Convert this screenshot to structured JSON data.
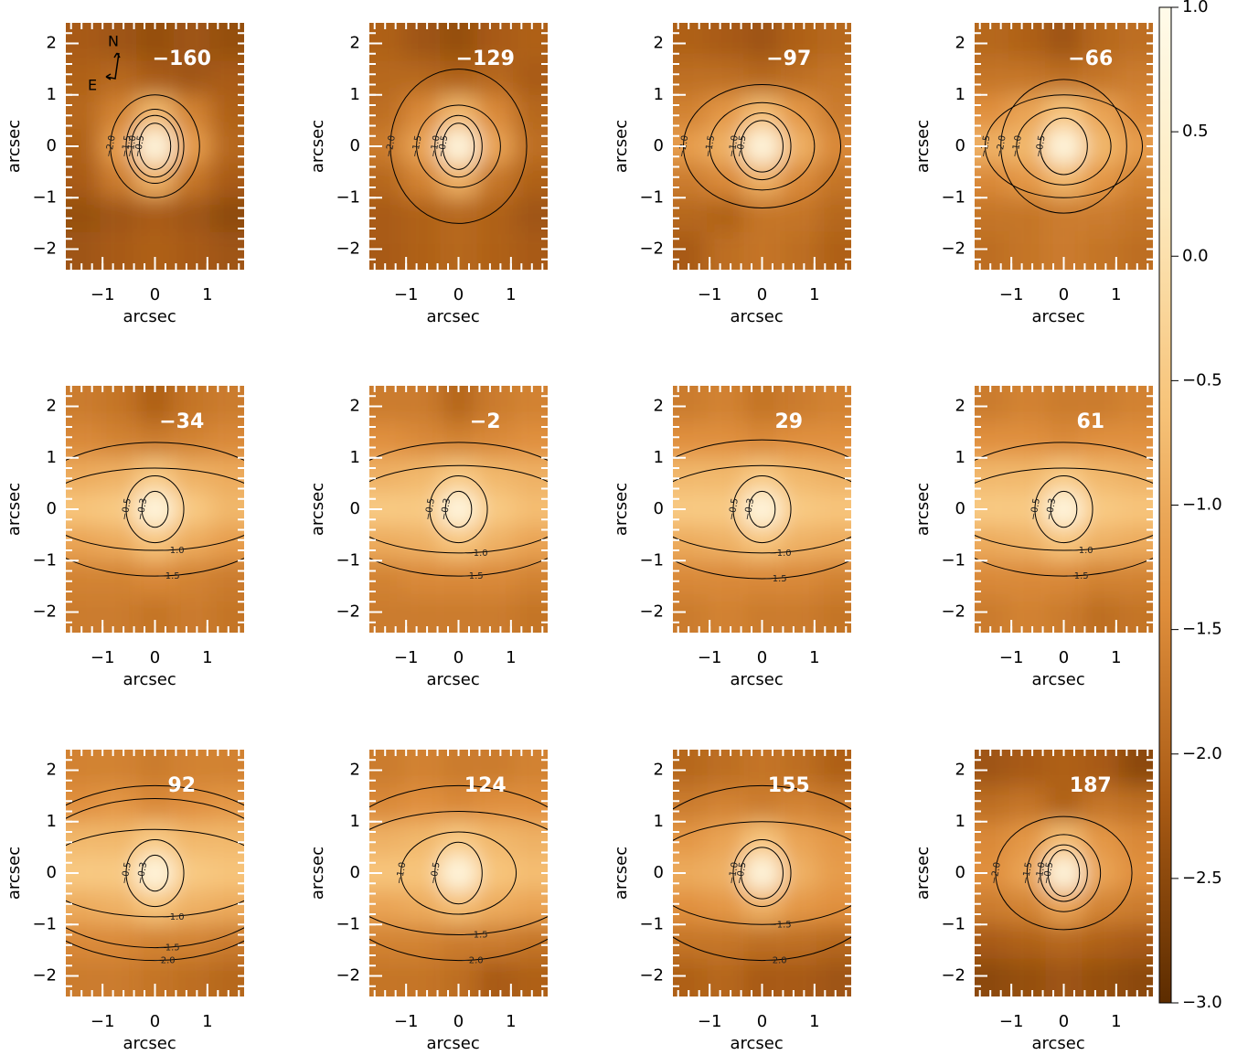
{
  "chart_data": {
    "type": "heatmap",
    "xlabel": "arcsec",
    "ylabel": "arcsec",
    "xlim": [
      -1.7,
      1.7
    ],
    "ylim": [
      -2.4,
      2.4
    ],
    "xticks": [
      {
        "value": -1,
        "label": "−1"
      },
      0,
      1
    ],
    "yticks": [
      {
        "value": -2,
        "label": "−2"
      },
      {
        "value": -1,
        "label": "−1"
      },
      0,
      1,
      2
    ],
    "grid_x": [
      -1.4,
      -0.7,
      0,
      0.7,
      1.4
    ],
    "grid_y": [
      2,
      1.33,
      0.67,
      0,
      -0.67,
      -1.33,
      -2
    ],
    "clim": [
      -3,
      1
    ],
    "colormap": [
      "#5c2c00",
      "#a85a14",
      "#e08f3c",
      "#f7c47a",
      "#fde9bd",
      "#fffbea"
    ],
    "cticks": [
      {
        "value": 1,
        "label": "1.0"
      },
      {
        "value": 0.5,
        "label": "0.5"
      },
      {
        "value": 0,
        "label": "0.0"
      },
      {
        "value": -0.5,
        "label": "−0.5"
      },
      {
        "value": -1,
        "label": "−1.0"
      },
      {
        "value": -1.5,
        "label": "−1.5"
      },
      {
        "value": -2,
        "label": "−2.0"
      },
      {
        "value": -2.5,
        "label": "−2.5"
      },
      {
        "value": -3,
        "label": "−3.0"
      }
    ],
    "compass": {
      "north": "N",
      "east": "E"
    },
    "panels": [
      {
        "title": "−160",
        "values": [
          [
            -2.2,
            -2.3,
            -2.4,
            -2.3,
            -2.4
          ],
          [
            -2.1,
            -2.0,
            -2.2,
            -2.3,
            -2.2
          ],
          [
            -2.0,
            -1.6,
            -0.8,
            -1.6,
            -2.1
          ],
          [
            -2.1,
            -1.2,
            0.8,
            -1.2,
            -2.0
          ],
          [
            -2.2,
            -1.7,
            -0.9,
            -1.8,
            -2.2
          ],
          [
            -2.4,
            -2.3,
            -2.2,
            -2.3,
            -2.5
          ],
          [
            -2.3,
            -2.2,
            -2.1,
            -2.2,
            -2.3
          ]
        ],
        "contours": [
          {
            "level": -0.5,
            "label": "−0.5",
            "rx": 0.3,
            "ry": 0.45
          },
          {
            "level": -1.0,
            "label": "−1.0",
            "rx": 0.45,
            "ry": 0.6
          },
          {
            "level": -1.5,
            "label": "−1.5",
            "rx": 0.55,
            "ry": 0.72
          },
          {
            "level": -2.0,
            "label": "−2.0",
            "rx": 0.85,
            "ry": 1.0
          }
        ]
      },
      {
        "title": "−129",
        "values": [
          [
            -2.1,
            -2.3,
            -2.4,
            -2.2,
            -2.1
          ],
          [
            -2.0,
            -2.0,
            -2.1,
            -2.0,
            -2.2
          ],
          [
            -1.9,
            -1.5,
            -0.8,
            -1.5,
            -2.0
          ],
          [
            -1.7,
            -1.1,
            0.8,
            -1.1,
            -1.9
          ],
          [
            -2.0,
            -1.6,
            -0.9,
            -1.8,
            -2.1
          ],
          [
            -2.2,
            -2.1,
            -2.0,
            -2.1,
            -2.3
          ],
          [
            -2.2,
            -2.1,
            -2.0,
            -2.1,
            -2.2
          ]
        ],
        "contours": [
          {
            "level": -0.5,
            "label": "−0.5",
            "rx": 0.3,
            "ry": 0.45
          },
          {
            "level": -1.0,
            "label": "−1.0",
            "rx": 0.45,
            "ry": 0.6
          },
          {
            "level": -1.5,
            "label": "−1.5",
            "rx": 0.8,
            "ry": 0.8
          },
          {
            "level": -2.0,
            "label": "−2.0",
            "rx": 1.3,
            "ry": 1.5
          }
        ]
      },
      {
        "title": "−97",
        "values": [
          [
            -2.1,
            -2.2,
            -2.3,
            -2.1,
            -2.0
          ],
          [
            -1.9,
            -1.9,
            -2.0,
            -1.9,
            -1.8
          ],
          [
            -1.6,
            -1.3,
            -0.7,
            -1.3,
            -1.7
          ],
          [
            -1.2,
            -0.9,
            0.8,
            -0.9,
            -1.5
          ],
          [
            -1.7,
            -1.5,
            -0.9,
            -1.5,
            -1.8
          ],
          [
            -2.0,
            -2.1,
            -1.8,
            -1.8,
            -2.0
          ],
          [
            -2.2,
            -1.9,
            -1.8,
            -1.9,
            -2.1
          ]
        ],
        "contours": [
          {
            "level": -0.5,
            "label": "−0.5",
            "rx": 0.4,
            "ry": 0.5
          },
          {
            "level": -1.0,
            "label": "−1.0",
            "rx": 0.55,
            "ry": 0.65
          },
          {
            "level": -1.5,
            "label": "−1.5",
            "rx": 1.0,
            "ry": 0.85
          },
          {
            "level": -2.0,
            "label": "−2.0",
            "rx": 1.5,
            "ry": 1.2
          }
        ]
      },
      {
        "title": "−66",
        "values": [
          [
            -2.0,
            -2.1,
            -2.3,
            -2.0,
            -1.9
          ],
          [
            -1.8,
            -1.8,
            -1.9,
            -1.8,
            -1.7
          ],
          [
            -1.4,
            -1.1,
            -0.6,
            -1.1,
            -1.5
          ],
          [
            -0.9,
            -0.8,
            0.8,
            -0.8,
            -1.2
          ],
          [
            -1.5,
            -1.3,
            -0.8,
            -1.3,
            -1.6
          ],
          [
            -1.8,
            -1.8,
            -1.7,
            -1.7,
            -1.8
          ],
          [
            -1.9,
            -1.8,
            -1.7,
            -1.8,
            -1.9
          ]
        ],
        "contours": [
          {
            "level": -0.5,
            "label": "−0.5",
            "rx": 0.45,
            "ry": 0.55
          },
          {
            "level": -1.0,
            "label": "−1.0",
            "rx": 0.9,
            "ry": 0.75
          },
          {
            "level": -1.5,
            "label": "−1.5",
            "rx": 1.5,
            "ry": 1.0
          },
          {
            "level": -2.0,
            "label": "−2.0",
            "rx": 1.2,
            "ry": 1.3
          }
        ]
      },
      {
        "title": "−34",
        "values": [
          [
            -1.7,
            -1.8,
            -2.1,
            -1.8,
            -1.7
          ],
          [
            -1.5,
            -1.6,
            -1.7,
            -1.6,
            -1.5
          ],
          [
            -1.0,
            -0.9,
            -0.5,
            -0.9,
            -1.0
          ],
          [
            -0.6,
            -0.5,
            0.8,
            -0.5,
            -0.8
          ],
          [
            -1.1,
            -1.0,
            -0.6,
            -1.0,
            -1.2
          ],
          [
            -1.6,
            -1.6,
            -1.5,
            -1.6,
            -1.7
          ],
          [
            -1.7,
            -1.7,
            -1.8,
            -1.7,
            -1.8
          ]
        ],
        "contours": [
          {
            "level": -0.3,
            "label": "−0.3",
            "rx": 0.25,
            "ry": 0.35
          },
          {
            "level": -0.5,
            "label": "−0.5",
            "rx": 0.55,
            "ry": 0.65
          },
          {
            "level": -1.0,
            "label": "−1.0",
            "rx": 2.2,
            "ry": 0.8
          },
          {
            "level": -1.5,
            "label": "−1.5",
            "rx": 2.5,
            "ry": 1.3
          }
        ]
      },
      {
        "title": "−2",
        "values": [
          [
            -1.7,
            -1.7,
            -2.0,
            -1.7,
            -1.6
          ],
          [
            -1.4,
            -1.5,
            -1.6,
            -1.5,
            -1.4
          ],
          [
            -0.9,
            -0.8,
            -0.5,
            -0.8,
            -0.9
          ],
          [
            -0.5,
            -0.5,
            0.8,
            -0.5,
            -0.7
          ],
          [
            -1.0,
            -0.9,
            -0.6,
            -0.9,
            -1.1
          ],
          [
            -1.6,
            -1.5,
            -1.5,
            -1.5,
            -1.6
          ],
          [
            -1.7,
            -1.7,
            -1.7,
            -1.7,
            -1.8
          ]
        ],
        "contours": [
          {
            "level": -0.3,
            "label": "−0.3",
            "rx": 0.25,
            "ry": 0.35
          },
          {
            "level": -0.5,
            "label": "−0.5",
            "rx": 0.55,
            "ry": 0.65
          },
          {
            "level": -1.0,
            "label": "−1.0",
            "rx": 2.2,
            "ry": 0.85
          },
          {
            "level": -1.5,
            "label": "−1.5",
            "rx": 2.5,
            "ry": 1.3
          }
        ]
      },
      {
        "title": "29",
        "values": [
          [
            -1.7,
            -1.6,
            -1.8,
            -1.7,
            -1.6
          ],
          [
            -1.4,
            -1.4,
            -1.5,
            -1.4,
            -1.4
          ],
          [
            -0.8,
            -0.8,
            -0.5,
            -0.8,
            -0.9
          ],
          [
            -0.5,
            -0.5,
            0.8,
            -0.5,
            -0.6
          ],
          [
            -1.0,
            -0.9,
            -0.6,
            -0.9,
            -1.0
          ],
          [
            -1.5,
            -1.5,
            -1.5,
            -1.5,
            -1.6
          ],
          [
            -1.7,
            -1.6,
            -1.7,
            -1.7,
            -1.8
          ]
        ],
        "contours": [
          {
            "level": -0.3,
            "label": "−0.3",
            "rx": 0.25,
            "ry": 0.35
          },
          {
            "level": -0.5,
            "label": "−0.5",
            "rx": 0.55,
            "ry": 0.65
          },
          {
            "level": -1.0,
            "label": "−1.0",
            "rx": 2.2,
            "ry": 0.85
          },
          {
            "level": -1.5,
            "label": "−1.5",
            "rx": 2.5,
            "ry": 1.35
          }
        ]
      },
      {
        "title": "61",
        "values": [
          [
            -1.7,
            -1.6,
            -1.7,
            -1.7,
            -1.6
          ],
          [
            -1.4,
            -1.4,
            -1.5,
            -1.4,
            -1.4
          ],
          [
            -0.8,
            -0.8,
            -0.5,
            -0.8,
            -0.9
          ],
          [
            -0.5,
            -0.5,
            0.8,
            -0.5,
            -0.6
          ],
          [
            -1.0,
            -0.9,
            -0.6,
            -0.9,
            -1.0
          ],
          [
            -1.5,
            -1.5,
            -1.5,
            -1.6,
            -1.6
          ],
          [
            -1.7,
            -1.6,
            -1.7,
            -1.9,
            -1.8
          ]
        ],
        "contours": [
          {
            "level": -0.3,
            "label": "−0.3",
            "rx": 0.25,
            "ry": 0.35
          },
          {
            "level": -0.5,
            "label": "−0.5",
            "rx": 0.55,
            "ry": 0.65
          },
          {
            "level": -1.0,
            "label": "−1.0",
            "rx": 2.2,
            "ry": 0.8
          },
          {
            "level": -1.5,
            "label": "−1.5",
            "rx": 2.5,
            "ry": 1.3
          }
        ]
      },
      {
        "title": "92",
        "values": [
          [
            -1.6,
            -1.6,
            -1.7,
            -1.6,
            -1.6
          ],
          [
            -1.4,
            -1.3,
            -1.5,
            -1.4,
            -1.3
          ],
          [
            -0.8,
            -0.8,
            -0.5,
            -0.8,
            -0.8
          ],
          [
            -0.5,
            -0.5,
            0.8,
            -0.5,
            -0.6
          ],
          [
            -1.0,
            -0.9,
            -0.6,
            -0.9,
            -1.0
          ],
          [
            -1.5,
            -1.5,
            -1.6,
            -1.6,
            -1.7
          ],
          [
            -1.7,
            -1.7,
            -1.8,
            -1.9,
            -2.0
          ]
        ],
        "contours": [
          {
            "level": -0.3,
            "label": "−0.3",
            "rx": 0.25,
            "ry": 0.35
          },
          {
            "level": -0.5,
            "label": "−0.5",
            "rx": 0.55,
            "ry": 0.65
          },
          {
            "level": -1.0,
            "label": "−1.0",
            "rx": 2.2,
            "ry": 0.85
          },
          {
            "level": -1.5,
            "label": "−1.5",
            "rx": 2.5,
            "ry": 1.45
          },
          {
            "level": -2.0,
            "label": "−2.0",
            "rx": 2.7,
            "ry": 1.7
          }
        ]
      },
      {
        "title": "124",
        "values": [
          [
            -1.7,
            -1.6,
            -1.7,
            -1.7,
            -1.6
          ],
          [
            -1.5,
            -1.4,
            -1.5,
            -1.4,
            -1.4
          ],
          [
            -0.9,
            -0.8,
            -0.5,
            -0.8,
            -0.9
          ],
          [
            -0.6,
            -0.6,
            0.8,
            -0.6,
            -0.7
          ],
          [
            -1.1,
            -1.0,
            -0.7,
            -1.0,
            -1.1
          ],
          [
            -1.6,
            -1.6,
            -1.7,
            -1.7,
            -1.8
          ],
          [
            -1.8,
            -1.8,
            -1.9,
            -2.2,
            -2.1
          ]
        ],
        "contours": [
          {
            "level": -0.5,
            "label": "−0.5",
            "rx": 0.45,
            "ry": 0.6
          },
          {
            "level": -1.0,
            "label": "−1.0",
            "rx": 1.1,
            "ry": 0.8
          },
          {
            "level": -1.5,
            "label": "−1.5",
            "rx": 2.4,
            "ry": 1.2
          },
          {
            "level": -2.0,
            "label": "−2.0",
            "rx": 2.6,
            "ry": 1.7
          }
        ]
      },
      {
        "title": "155",
        "values": [
          [
            -2.0,
            -1.9,
            -1.8,
            -1.9,
            -2.1
          ],
          [
            -1.7,
            -1.6,
            -1.7,
            -1.6,
            -1.7
          ],
          [
            -1.3,
            -1.1,
            -0.6,
            -1.1,
            -1.3
          ],
          [
            -1.0,
            -0.9,
            0.8,
            -0.9,
            -1.2
          ],
          [
            -1.4,
            -1.3,
            -0.9,
            -1.3,
            -1.4
          ],
          [
            -1.8,
            -1.8,
            -1.9,
            -1.9,
            -2.0
          ],
          [
            -2.1,
            -2.0,
            -2.2,
            -2.2,
            -2.3
          ]
        ],
        "contours": [
          {
            "level": -0.5,
            "label": "−0.5",
            "rx": 0.4,
            "ry": 0.5
          },
          {
            "level": -1.0,
            "label": "−1.0",
            "rx": 0.55,
            "ry": 0.65
          },
          {
            "level": -1.5,
            "label": "−1.5",
            "rx": 2.2,
            "ry": 1.0
          },
          {
            "level": -2.0,
            "label": "−2.0",
            "rx": 2.5,
            "ry": 1.7
          }
        ]
      },
      {
        "title": "187",
        "values": [
          [
            -2.3,
            -2.2,
            -2.1,
            -2.2,
            -2.5
          ],
          [
            -1.9,
            -1.8,
            -2.1,
            -1.8,
            -1.9
          ],
          [
            -1.5,
            -1.3,
            -0.7,
            -1.3,
            -1.5
          ],
          [
            -1.4,
            -1.1,
            0.8,
            -1.1,
            -1.4
          ],
          [
            -1.7,
            -1.6,
            -1.1,
            -1.6,
            -1.7
          ],
          [
            -2.2,
            -2.1,
            -2.0,
            -2.1,
            -2.2
          ],
          [
            -2.5,
            -2.4,
            -2.3,
            -2.4,
            -2.5
          ]
        ],
        "contours": [
          {
            "level": -0.5,
            "label": "−0.5",
            "rx": 0.3,
            "ry": 0.45
          },
          {
            "level": -1.0,
            "label": "−1.0",
            "rx": 0.45,
            "ry": 0.55
          },
          {
            "level": -1.5,
            "label": "−1.5",
            "rx": 0.7,
            "ry": 0.75
          },
          {
            "level": -2.0,
            "label": "−2.0",
            "rx": 1.3,
            "ry": 1.1
          }
        ]
      }
    ]
  }
}
